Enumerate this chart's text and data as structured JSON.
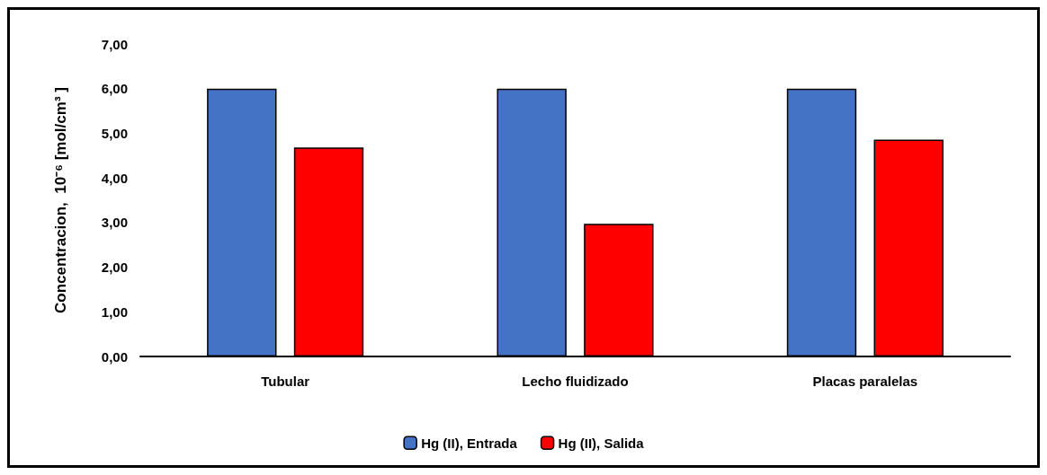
{
  "chart_data": {
    "type": "bar",
    "ylabel": "Concentracion,  10⁻⁶ [mol/cm³ ]",
    "categories": [
      "Tubular",
      "Lecho fluidizado",
      "Placas paralelas"
    ],
    "series": [
      {
        "name": "Hg (II), Entrada",
        "color": "#4472c4",
        "values": [
          6.0,
          6.0,
          6.0
        ]
      },
      {
        "name": "Hg (II), Salida",
        "color": "#ff0000",
        "values": [
          4.68,
          2.97,
          4.86
        ]
      }
    ],
    "ylim": [
      0,
      7
    ],
    "yticks": [
      {
        "value": 0,
        "label": "0,00"
      },
      {
        "value": 1,
        "label": "1,00"
      },
      {
        "value": 2,
        "label": "2,00"
      },
      {
        "value": 3,
        "label": "3,00"
      },
      {
        "value": 4,
        "label": "4,00"
      },
      {
        "value": 5,
        "label": "5,00"
      },
      {
        "value": 6,
        "label": "6,00"
      },
      {
        "value": 7,
        "label": "7,00"
      }
    ],
    "grid": false,
    "legend": "bottom"
  }
}
